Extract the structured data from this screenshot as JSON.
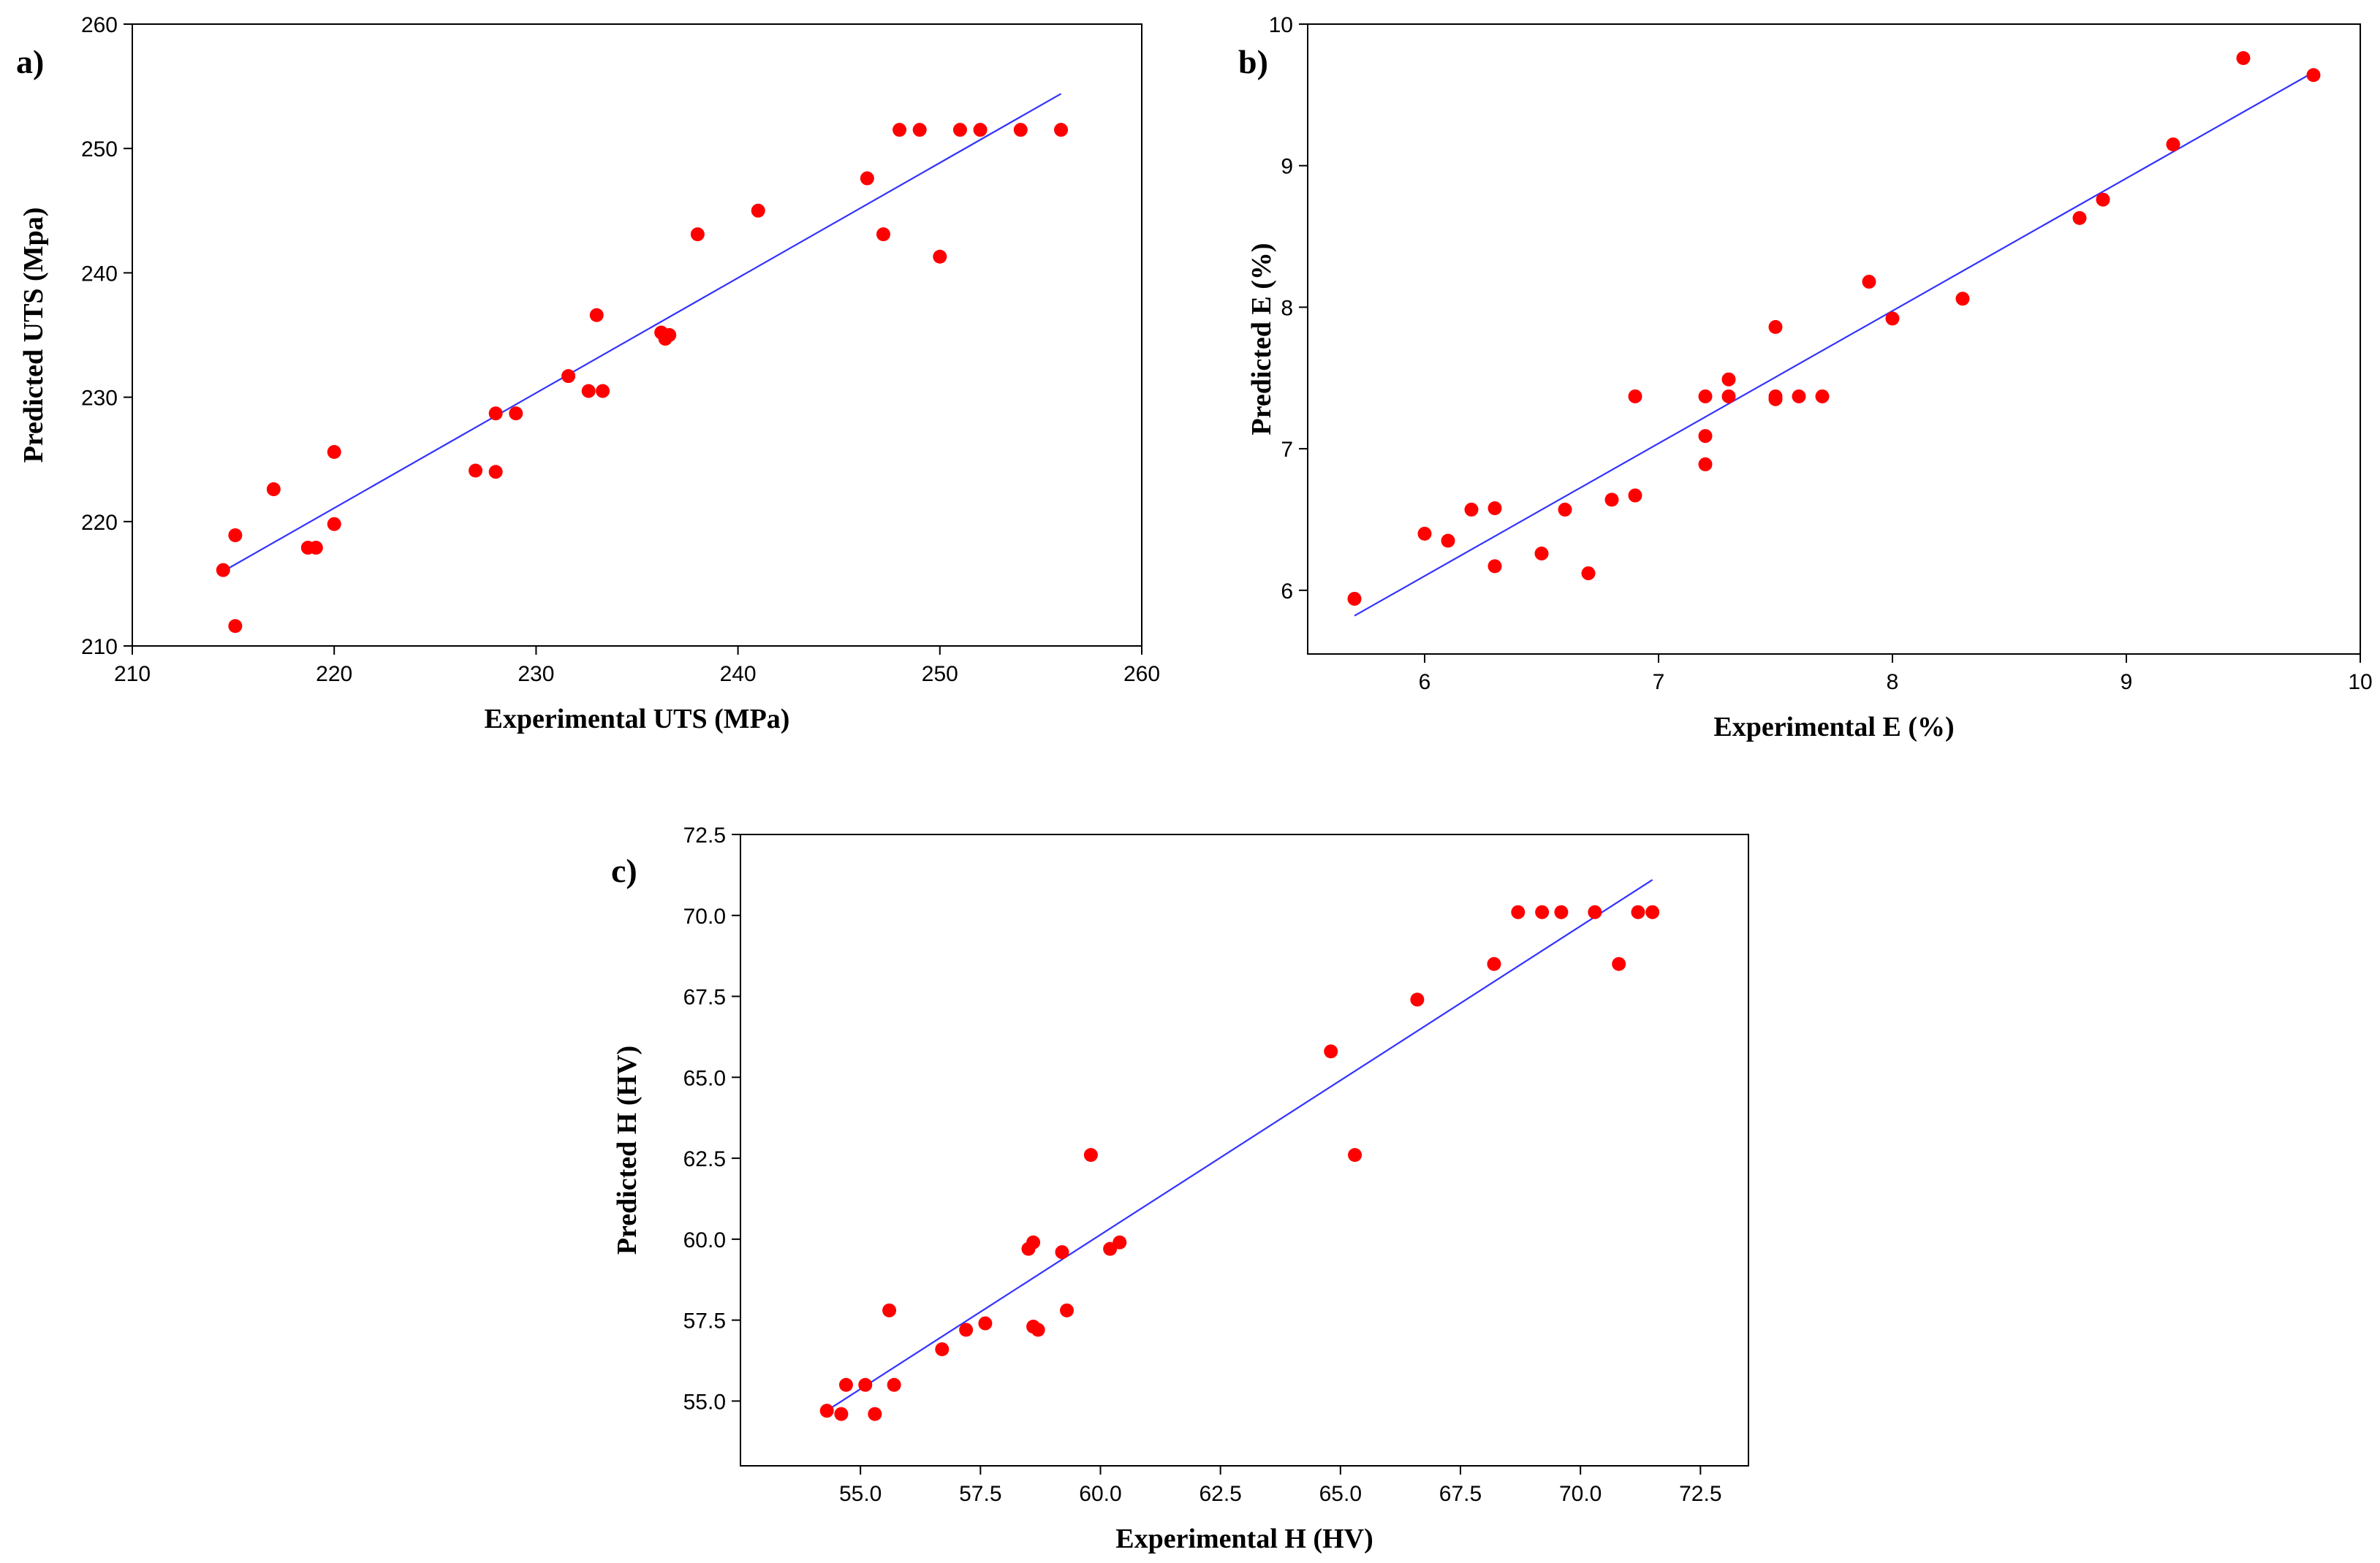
{
  "chart_data": [
    {
      "type": "scatter",
      "panel_label": "a)",
      "xlabel": "Experimental UTS (MPa)",
      "ylabel": "Predicted UTS (Mpa)",
      "xlim": [
        210,
        260
      ],
      "ylim": [
        210,
        260
      ],
      "xticks": [
        210,
        220,
        230,
        240,
        250,
        260
      ],
      "yticks": [
        210,
        220,
        230,
        240,
        250,
        260
      ],
      "xtick_labels": [
        "210",
        "220",
        "230",
        "240",
        "250",
        "260"
      ],
      "ytick_labels": [
        "210",
        "220",
        "230",
        "240",
        "250",
        "260"
      ],
      "grid": false,
      "colors": {
        "points": "#ff0000",
        "fit_line": "#3333ff"
      },
      "fit_line": {
        "x": [
          214.5,
          256
        ],
        "y": [
          216.0,
          254.4
        ]
      },
      "points": [
        {
          "x": 214.5,
          "y": 216.1
        },
        {
          "x": 215.1,
          "y": 218.9
        },
        {
          "x": 215.1,
          "y": 211.6
        },
        {
          "x": 217.0,
          "y": 222.6
        },
        {
          "x": 218.7,
          "y": 217.9
        },
        {
          "x": 219.1,
          "y": 217.9
        },
        {
          "x": 220.0,
          "y": 225.6
        },
        {
          "x": 220.0,
          "y": 219.8
        },
        {
          "x": 227.0,
          "y": 224.1
        },
        {
          "x": 228.0,
          "y": 228.7
        },
        {
          "x": 228.0,
          "y": 224.0
        },
        {
          "x": 229.0,
          "y": 228.7
        },
        {
          "x": 231.6,
          "y": 231.7
        },
        {
          "x": 232.6,
          "y": 230.5
        },
        {
          "x": 233.0,
          "y": 236.6
        },
        {
          "x": 233.3,
          "y": 230.5
        },
        {
          "x": 236.2,
          "y": 235.2
        },
        {
          "x": 236.4,
          "y": 234.7
        },
        {
          "x": 236.6,
          "y": 235.0
        },
        {
          "x": 238.0,
          "y": 243.1
        },
        {
          "x": 241.0,
          "y": 245.0
        },
        {
          "x": 246.4,
          "y": 247.6
        },
        {
          "x": 247.2,
          "y": 243.1
        },
        {
          "x": 248.0,
          "y": 251.5
        },
        {
          "x": 249.0,
          "y": 251.5
        },
        {
          "x": 250.0,
          "y": 241.3
        },
        {
          "x": 251.0,
          "y": 251.5
        },
        {
          "x": 252.0,
          "y": 251.5
        },
        {
          "x": 254.0,
          "y": 251.5
        },
        {
          "x": 256.0,
          "y": 251.5
        }
      ]
    },
    {
      "type": "scatter",
      "panel_label": "b)",
      "xlabel": "Experimental E (%)",
      "ylabel": "Predicted E (%)",
      "xlim": [
        5.5,
        10
      ],
      "ylim": [
        5.55,
        10
      ],
      "xticks": [
        6,
        7,
        8,
        9,
        10
      ],
      "yticks": [
        6,
        7,
        8,
        9,
        10
      ],
      "xtick_labels": [
        "6",
        "7",
        "8",
        "9",
        "10"
      ],
      "ytick_labels": [
        "6",
        "7",
        "8",
        "9",
        "10"
      ],
      "grid": false,
      "colors": {
        "points": "#ff0000",
        "fit_line": "#3333ff"
      },
      "fit_line": {
        "x": [
          5.7,
          9.8
        ],
        "y": [
          5.82,
          9.66
        ]
      },
      "points": [
        {
          "x": 5.7,
          "y": 5.94
        },
        {
          "x": 6.0,
          "y": 6.4
        },
        {
          "x": 6.1,
          "y": 6.35
        },
        {
          "x": 6.2,
          "y": 6.57
        },
        {
          "x": 6.3,
          "y": 6.58
        },
        {
          "x": 6.3,
          "y": 6.17
        },
        {
          "x": 6.5,
          "y": 6.26
        },
        {
          "x": 6.6,
          "y": 6.57
        },
        {
          "x": 6.7,
          "y": 6.12
        },
        {
          "x": 6.8,
          "y": 6.64
        },
        {
          "x": 6.9,
          "y": 7.37
        },
        {
          "x": 6.9,
          "y": 6.67
        },
        {
          "x": 7.2,
          "y": 7.37
        },
        {
          "x": 7.2,
          "y": 7.09
        },
        {
          "x": 7.2,
          "y": 6.89
        },
        {
          "x": 7.3,
          "y": 7.49
        },
        {
          "x": 7.3,
          "y": 7.37
        },
        {
          "x": 7.5,
          "y": 7.86
        },
        {
          "x": 7.5,
          "y": 7.37
        },
        {
          "x": 7.5,
          "y": 7.35
        },
        {
          "x": 7.6,
          "y": 7.37
        },
        {
          "x": 7.7,
          "y": 7.37
        },
        {
          "x": 7.9,
          "y": 8.18
        },
        {
          "x": 8.0,
          "y": 7.92
        },
        {
          "x": 8.3,
          "y": 8.06
        },
        {
          "x": 8.8,
          "y": 8.63
        },
        {
          "x": 8.9,
          "y": 8.76
        },
        {
          "x": 9.2,
          "y": 9.15
        },
        {
          "x": 9.5,
          "y": 9.76
        },
        {
          "x": 9.8,
          "y": 9.64
        }
      ]
    },
    {
      "type": "scatter",
      "panel_label": "c)",
      "xlabel": "Experimental H (HV)",
      "ylabel": "Predicted H (HV)",
      "xlim": [
        52.5,
        73.5
      ],
      "ylim": [
        53.0,
        72.5
      ],
      "xticks": [
        55.0,
        57.5,
        60.0,
        62.5,
        65.0,
        67.5,
        70.0,
        72.5
      ],
      "yticks": [
        55.0,
        57.5,
        60.0,
        62.5,
        65.0,
        67.5,
        70.0,
        72.5
      ],
      "xtick_labels": [
        "55.0",
        "57.5",
        "60.0",
        "62.5",
        "65.0",
        "67.5",
        "70.0",
        "72.5"
      ],
      "ytick_labels": [
        "55.0",
        "57.5",
        "60.0",
        "62.5",
        "65.0",
        "67.5",
        "70.0",
        "72.5"
      ],
      "grid": false,
      "colors": {
        "points": "#ff0000",
        "fit_line": "#3333ff"
      },
      "fit_line": {
        "x": [
          54.4,
          71.5
        ],
        "y": [
          54.8,
          71.1
        ]
      },
      "points": [
        {
          "x": 54.3,
          "y": 54.7
        },
        {
          "x": 54.6,
          "y": 54.6
        },
        {
          "x": 54.7,
          "y": 55.5
        },
        {
          "x": 55.1,
          "y": 55.5
        },
        {
          "x": 55.3,
          "y": 54.6
        },
        {
          "x": 55.6,
          "y": 57.8
        },
        {
          "x": 55.7,
          "y": 55.5
        },
        {
          "x": 56.7,
          "y": 56.6
        },
        {
          "x": 57.2,
          "y": 57.2
        },
        {
          "x": 57.6,
          "y": 57.4
        },
        {
          "x": 58.5,
          "y": 59.7
        },
        {
          "x": 58.6,
          "y": 59.9
        },
        {
          "x": 58.6,
          "y": 57.3
        },
        {
          "x": 58.7,
          "y": 57.2
        },
        {
          "x": 59.2,
          "y": 59.6
        },
        {
          "x": 59.3,
          "y": 57.8
        },
        {
          "x": 59.8,
          "y": 62.6
        },
        {
          "x": 60.2,
          "y": 59.7
        },
        {
          "x": 60.4,
          "y": 59.9
        },
        {
          "x": 64.8,
          "y": 65.8
        },
        {
          "x": 65.3,
          "y": 62.6
        },
        {
          "x": 66.6,
          "y": 67.4
        },
        {
          "x": 68.2,
          "y": 68.5
        },
        {
          "x": 68.7,
          "y": 70.1
        },
        {
          "x": 69.2,
          "y": 70.1
        },
        {
          "x": 69.6,
          "y": 70.1
        },
        {
          "x": 70.3,
          "y": 70.1
        },
        {
          "x": 70.8,
          "y": 68.5
        },
        {
          "x": 71.2,
          "y": 70.1
        },
        {
          "x": 71.5,
          "y": 70.1
        }
      ]
    }
  ]
}
